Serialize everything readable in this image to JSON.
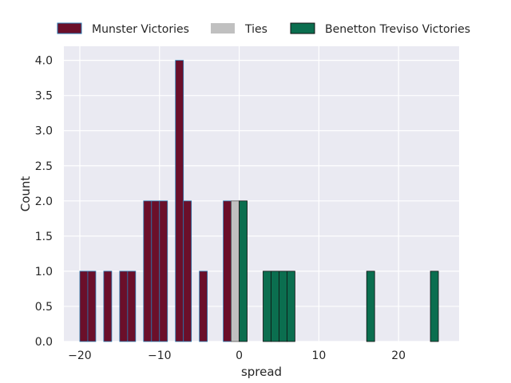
{
  "chart_data": {
    "type": "bar",
    "subtype": "histogram",
    "xlabel": "spread",
    "ylabel": "Count",
    "xlim": [
      -22,
      27.6
    ],
    "ylim": [
      0,
      4.2
    ],
    "bin_width": 1,
    "x_ticks": [
      -20,
      -10,
      0,
      10,
      20
    ],
    "y_ticks": [
      0.0,
      0.5,
      1.0,
      1.5,
      2.0,
      2.5,
      3.0,
      3.5,
      4.0
    ],
    "x_tick_labels": [
      "−20",
      "−10",
      "0",
      "10",
      "20"
    ],
    "y_tick_labels": [
      "0.0",
      "0.5",
      "1.0",
      "1.5",
      "2.0",
      "2.5",
      "3.0",
      "3.5",
      "4.0"
    ],
    "grid": true,
    "background": "#eaeaf2",
    "legend_placement": "top",
    "series": [
      {
        "name": "Munster Victories",
        "color": "#6b0f2a",
        "edge_color": "#2a7ab0",
        "bins": [
          {
            "x": -20,
            "count": 1
          },
          {
            "x": -19,
            "count": 1
          },
          {
            "x": -17,
            "count": 1
          },
          {
            "x": -15,
            "count": 1
          },
          {
            "x": -14,
            "count": 1
          },
          {
            "x": -12,
            "count": 2
          },
          {
            "x": -11,
            "count": 2
          },
          {
            "x": -10,
            "count": 2
          },
          {
            "x": -8,
            "count": 4
          },
          {
            "x": -7,
            "count": 2
          },
          {
            "x": -5,
            "count": 1
          },
          {
            "x": -2,
            "count": 2
          }
        ]
      },
      {
        "name": "Ties",
        "color": "#c0c0c0",
        "edge_color": "#555555",
        "bins": [
          {
            "x": -1,
            "count": 2
          }
        ]
      },
      {
        "name": "Benetton Treviso Victories",
        "color": "#0b6e4f",
        "edge_color": "#111111",
        "bins": [
          {
            "x": 0,
            "count": 2
          },
          {
            "x": 3,
            "count": 1
          },
          {
            "x": 4,
            "count": 1
          },
          {
            "x": 5,
            "count": 1
          },
          {
            "x": 6,
            "count": 1
          },
          {
            "x": 16,
            "count": 1
          },
          {
            "x": 24,
            "count": 1
          }
        ]
      }
    ]
  }
}
